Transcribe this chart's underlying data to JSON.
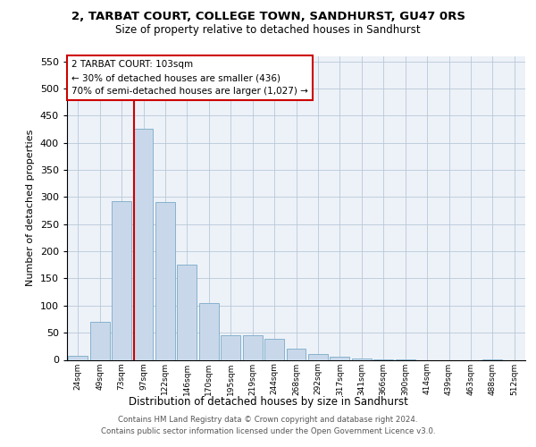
{
  "title": "2, TARBAT COURT, COLLEGE TOWN, SANDHURST, GU47 0RS",
  "subtitle": "Size of property relative to detached houses in Sandhurst",
  "xlabel": "Distribution of detached houses by size in Sandhurst",
  "ylabel": "Number of detached properties",
  "footer_line1": "Contains HM Land Registry data © Crown copyright and database right 2024.",
  "footer_line2": "Contains public sector information licensed under the Open Government Licence v3.0.",
  "annotation_line1": "2 TARBAT COURT: 103sqm",
  "annotation_line2": "← 30% of detached houses are smaller (436)",
  "annotation_line3": "70% of semi-detached houses are larger (1,027) →",
  "bar_labels": [
    "24sqm",
    "49sqm",
    "73sqm",
    "97sqm",
    "122sqm",
    "146sqm",
    "170sqm",
    "195sqm",
    "219sqm",
    "244sqm",
    "268sqm",
    "292sqm",
    "317sqm",
    "341sqm",
    "366sqm",
    "390sqm",
    "414sqm",
    "439sqm",
    "463sqm",
    "488sqm",
    "512sqm"
  ],
  "bar_values": [
    8,
    70,
    293,
    425,
    290,
    175,
    105,
    45,
    45,
    38,
    20,
    10,
    5,
    2,
    1,
    1,
    0,
    0,
    0,
    1,
    0
  ],
  "bar_color": "#c8d8ea",
  "bar_edge_color": "#7aaac8",
  "property_line_color": "#cc0000",
  "property_bar_index": 3,
  "grid_color": "#b8c8d8",
  "bg_color": "#edf2f8",
  "ylim_max": 560,
  "yticks": [
    0,
    50,
    100,
    150,
    200,
    250,
    300,
    350,
    400,
    450,
    500,
    550
  ]
}
